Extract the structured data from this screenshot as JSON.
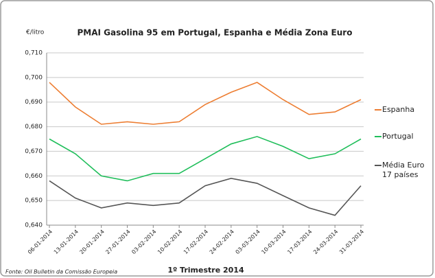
{
  "chart_data": {
    "type": "line",
    "title": "PMAI Gasolina 95 em Portugal, Espanha e Média Zona Euro",
    "y_axis_label": "€/litro",
    "x_axis_label": "1º Trimestre 2014",
    "source": "Fonte: Oil Bulletin  da Comissão Europeia",
    "categories": [
      "06-01-2014",
      "13-01-2014",
      "20-01-2014",
      "27-01-2014",
      "03-02-2014",
      "10-02-2014",
      "17-02-2014",
      "24-02-2014",
      "03-03-2014",
      "10-03-2014",
      "17-03-2014",
      "24-03-2014",
      "31-03-2014"
    ],
    "series": [
      {
        "name": "Espanha",
        "color": "#ed7d31",
        "values": [
          0.698,
          0.688,
          0.681,
          0.682,
          0.681,
          0.682,
          0.689,
          0.694,
          0.698,
          0.691,
          0.685,
          0.686,
          0.691
        ]
      },
      {
        "name": "Portugal",
        "color": "#1fbe5a",
        "values": [
          0.675,
          0.669,
          0.66,
          0.658,
          0.661,
          0.661,
          0.667,
          0.673,
          0.676,
          0.672,
          0.667,
          0.669,
          0.675
        ]
      },
      {
        "name": "Média Euro 17 países",
        "color": "#555555",
        "values": [
          0.658,
          0.651,
          0.647,
          0.649,
          0.648,
          0.649,
          0.656,
          0.659,
          0.657,
          0.652,
          0.647,
          0.644,
          0.656
        ]
      }
    ],
    "ylim": [
      0.64,
      0.71
    ],
    "yticks": [
      {
        "value": 0.64,
        "label": "0,640"
      },
      {
        "value": 0.65,
        "label": "0,650"
      },
      {
        "value": 0.66,
        "label": "0,660"
      },
      {
        "value": 0.67,
        "label": "0,670"
      },
      {
        "value": 0.68,
        "label": "0,680"
      },
      {
        "value": 0.69,
        "label": "0,690"
      },
      {
        "value": 0.7,
        "label": "0,700"
      },
      {
        "value": 0.71,
        "label": "0,710"
      }
    ],
    "grid": true,
    "legend": "right"
  }
}
